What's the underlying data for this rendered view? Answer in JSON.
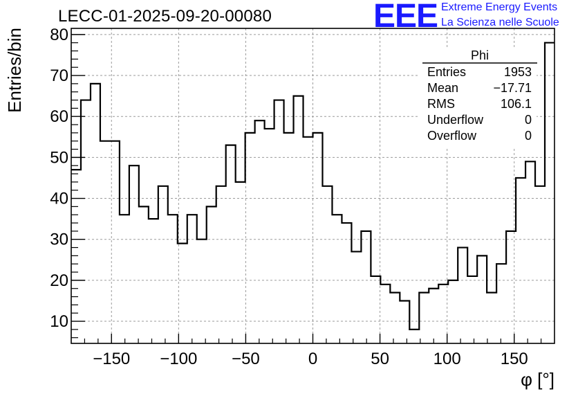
{
  "title": "LECC-01-2025-09-20-00080",
  "logo": {
    "mark": "EEE",
    "line1": "Extreme Energy Events",
    "line2": "La Scienza nelle Scuole",
    "color": "#1a1aff"
  },
  "stats_box": {
    "title": "Phi",
    "rows": [
      {
        "label": "Entries",
        "value": "1953"
      },
      {
        "label": "Mean",
        "value": "−17.71"
      },
      {
        "label": "RMS",
        "value": "106.1"
      },
      {
        "label": "Underflow",
        "value": "0"
      },
      {
        "label": "Overflow",
        "value": "0"
      }
    ]
  },
  "chart_data": {
    "type": "histogram",
    "title": "LECC-01-2025-09-20-00080",
    "xlabel": "φ [°]",
    "ylabel": "Entries/bin",
    "xlim": [
      -180,
      180
    ],
    "ylim": [
      4.6,
      81.5
    ],
    "bin_width": 7.2,
    "x_ticks": [
      -150,
      -100,
      -50,
      0,
      50,
      100,
      150
    ],
    "x_tick_labels": [
      "−150",
      "−100",
      "−50",
      "0",
      "50",
      "100",
      "150"
    ],
    "y_ticks": [
      10,
      20,
      30,
      40,
      50,
      60,
      70,
      80
    ],
    "y_tick_labels": [
      "10",
      "20",
      "30",
      "40",
      "50",
      "60",
      "70",
      "80"
    ],
    "grid": true,
    "line_color": "#000000",
    "values": [
      47,
      64,
      68,
      54,
      54,
      36,
      48,
      38,
      35,
      43,
      36,
      29,
      36,
      30,
      38,
      43,
      53,
      44,
      56,
      59,
      57,
      64,
      56,
      65,
      55,
      56,
      43,
      36,
      34,
      27,
      32,
      21,
      19,
      17,
      15,
      8,
      17,
      18,
      19,
      20,
      28,
      21,
      26,
      17,
      24,
      32,
      45,
      49,
      43,
      78
    ]
  }
}
